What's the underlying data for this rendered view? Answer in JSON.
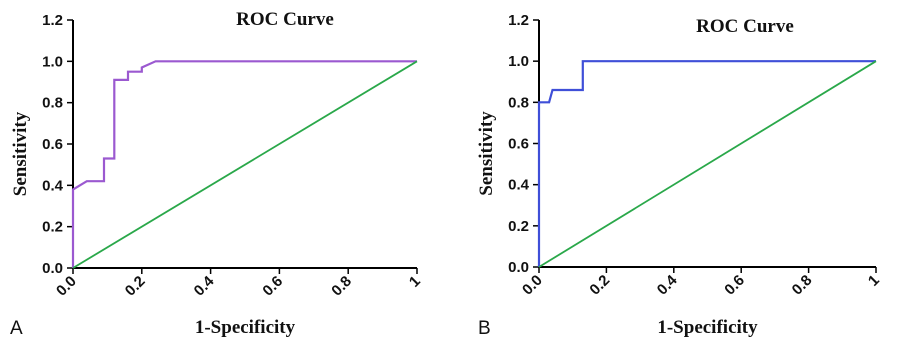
{
  "chart_data": [
    {
      "panel": "A",
      "type": "line",
      "title": "ROC Curve",
      "xlabel": "1-Specificity",
      "ylabel": "Sensitivity",
      "xlim": [
        0,
        1
      ],
      "ylim": [
        0,
        1.2
      ],
      "xticks": [
        "0.0",
        "0.2",
        "0.4",
        "0.6",
        "0.8",
        "1"
      ],
      "xtick_values": [
        0,
        0.2,
        0.4,
        0.6,
        0.8,
        1
      ],
      "yticks": [
        "0.0",
        "0.2",
        "0.4",
        "0.6",
        "0.8",
        "1.0",
        "1.2"
      ],
      "ytick_values": [
        0,
        0.2,
        0.4,
        0.6,
        0.8,
        1.0,
        1.2
      ],
      "grid": false,
      "series": [
        {
          "color": "#9b59d0",
          "x": [
            0,
            0,
            0.04,
            0.04,
            0.09,
            0.09,
            0.12,
            0.12,
            0.16,
            0.16,
            0.2,
            0.2,
            0.24,
            1
          ],
          "y": [
            0,
            0.38,
            0.42,
            0.42,
            0.42,
            0.53,
            0.53,
            0.91,
            0.91,
            0.95,
            0.95,
            0.97,
            1.0,
            1.0
          ]
        },
        {
          "color": "#2aa84a",
          "x": [
            0,
            1
          ],
          "y": [
            0,
            1
          ]
        }
      ]
    },
    {
      "panel": "B",
      "type": "line",
      "title": "ROC Curve",
      "xlabel": "1-Specificity",
      "ylabel": "Sensitivity",
      "xlim": [
        0,
        1
      ],
      "ylim": [
        0,
        1.2
      ],
      "xticks": [
        "0.0",
        "0.2",
        "0.4",
        "0.6",
        "0.8",
        "1"
      ],
      "xtick_values": [
        0,
        0.2,
        0.4,
        0.6,
        0.8,
        1
      ],
      "yticks": [
        "0.0",
        "0.2",
        "0.4",
        "0.6",
        "0.8",
        "1.0",
        "1.2"
      ],
      "ytick_values": [
        0,
        0.2,
        0.4,
        0.6,
        0.8,
        1.0,
        1.2
      ],
      "grid": false,
      "series": [
        {
          "color": "#3f4fd8",
          "x": [
            0,
            0,
            0.03,
            0.03,
            0.04,
            0.04,
            0.13,
            0.13,
            1
          ],
          "y": [
            0,
            0.8,
            0.8,
            0.8,
            0.86,
            0.86,
            0.86,
            1.0,
            1.0
          ]
        },
        {
          "color": "#2aa84a",
          "x": [
            0,
            1
          ],
          "y": [
            0,
            1
          ]
        }
      ]
    }
  ]
}
